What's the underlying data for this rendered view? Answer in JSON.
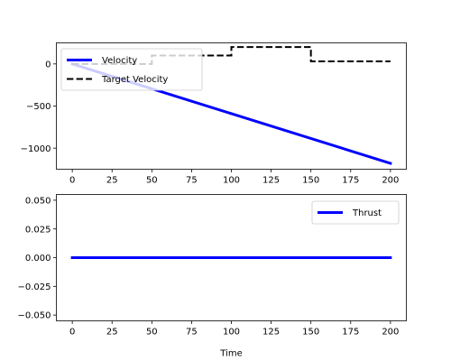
{
  "chart_data": [
    {
      "type": "line",
      "xlabel": "",
      "ylabel": "",
      "xlim": [
        -10,
        210
      ],
      "ylim": [
        -1250,
        250
      ],
      "xticks": [
        0,
        25,
        50,
        75,
        100,
        125,
        150,
        175,
        200
      ],
      "xtick_labels": [
        "0",
        "25",
        "50",
        "75",
        "100",
        "125",
        "150",
        "175",
        "200"
      ],
      "yticks": [
        0,
        -500,
        -1000
      ],
      "ytick_labels": [
        "0",
        "−500",
        "−1000"
      ],
      "grid": false,
      "legend_placement": "upper-left",
      "series": [
        {
          "name": "Velocity",
          "color": "#0000ff",
          "style": "solid",
          "x": [
            0,
            200
          ],
          "y": [
            0,
            -1180
          ]
        },
        {
          "name": "Target Velocity",
          "color": "#000000",
          "style": "dashed",
          "x": [
            0,
            50,
            50,
            100,
            100,
            150,
            150,
            200
          ],
          "y": [
            0,
            0,
            100,
            100,
            200,
            200,
            30,
            30
          ]
        }
      ]
    },
    {
      "type": "line",
      "xlabel": "Time",
      "ylabel": "",
      "xlim": [
        -10,
        210
      ],
      "ylim": [
        -0.055,
        0.055
      ],
      "xticks": [
        0,
        25,
        50,
        75,
        100,
        125,
        150,
        175,
        200
      ],
      "xtick_labels": [
        "0",
        "25",
        "50",
        "75",
        "100",
        "125",
        "150",
        "175",
        "200"
      ],
      "yticks": [
        0.05,
        0.025,
        0,
        -0.025,
        -0.05
      ],
      "ytick_labels": [
        "0.050",
        "0.025",
        "0.000",
        "−0.025",
        "−0.050"
      ],
      "grid": false,
      "legend_placement": "upper-right",
      "series": [
        {
          "name": "Thrust",
          "color": "#0000ff",
          "style": "solid",
          "x": [
            0,
            200
          ],
          "y": [
            0,
            0
          ]
        }
      ]
    }
  ]
}
